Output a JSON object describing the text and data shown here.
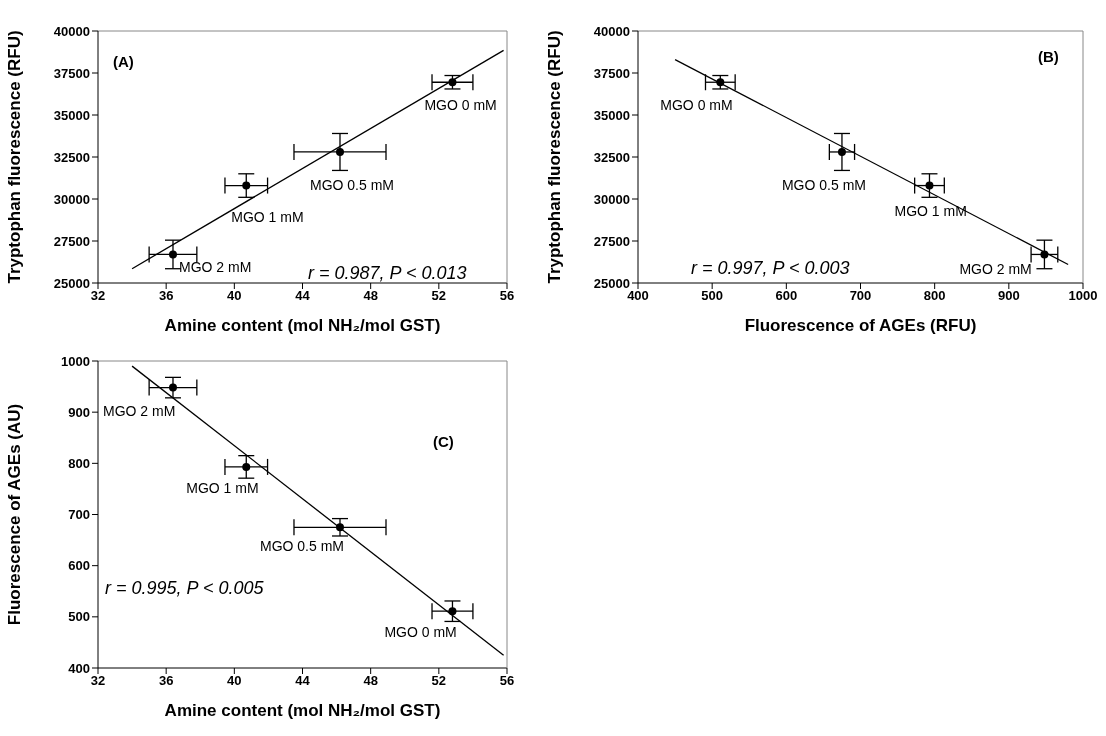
{
  "chart_data": [
    {
      "type": "scatter",
      "xlabel": "Amine content (mol NH₂/mol GST)",
      "ylabel": "Tryptophan fluorescence (RFU)",
      "xlim": [
        32,
        56
      ],
      "xticks": [
        32,
        36,
        40,
        44,
        48,
        52,
        56
      ],
      "ylim": [
        25000,
        40000
      ],
      "yticks": [
        25000,
        27500,
        30000,
        32500,
        35000,
        37500,
        40000
      ],
      "marker": "circle",
      "grid": false,
      "series": [
        {
          "color": "#000000",
          "x": [
            36.4,
            40.7,
            46.2,
            52.8
          ],
          "values": [
            26700,
            30800,
            32800,
            36950
          ],
          "errors": [
            850,
            700,
            1100,
            400
          ],
          "xerrors": [
            1.4,
            1.25,
            2.7,
            1.2
          ]
        },
        {
          "type": "line",
          "color": "#000000",
          "marker": "none",
          "x": [
            34,
            55.8
          ],
          "values": [
            25850,
            38850
          ]
        }
      ],
      "annotations": [
        "(A)",
        "r = 0.987, P < 0.013",
        {
          "text": "MGO 2 mM",
          "x": 36.4,
          "y": 26700
        },
        {
          "text": "MGO 1 mM",
          "x": 40.7,
          "y": 30800
        },
        {
          "text": "MGO 0.5 mM",
          "x": 46.2,
          "y": 32800
        },
        {
          "text": "MGO 0 mM",
          "x": 52.8,
          "y": 36950
        }
      ]
    },
    {
      "type": "scatter",
      "xlabel": "Fluorescence of AGEs (RFU)",
      "ylabel": "Tryptophan fluorescence (RFU)",
      "xlim": [
        400,
        1000
      ],
      "xticks": [
        400,
        500,
        600,
        700,
        800,
        900,
        1000
      ],
      "ylim": [
        25000,
        40000
      ],
      "yticks": [
        25000,
        27500,
        30000,
        32500,
        35000,
        37500,
        40000
      ],
      "marker": "circle",
      "grid": false,
      "series": [
        {
          "color": "#000000",
          "x": [
            511,
            675,
            793,
            948
          ],
          "values": [
            36950,
            32800,
            30800,
            26700
          ],
          "errors": [
            400,
            1100,
            700,
            850
          ],
          "xerrors": [
            20,
            17,
            20,
            18
          ]
        },
        {
          "type": "line",
          "color": "#000000",
          "marker": "none",
          "x": [
            450,
            980
          ],
          "values": [
            38300,
            26100
          ]
        }
      ],
      "annotations": [
        "(B)",
        "r = 0.997, P < 0.003",
        {
          "text": "MGO 0 mM",
          "x": 511,
          "y": 36950
        },
        {
          "text": "MGO 0.5 mM",
          "x": 675,
          "y": 32800
        },
        {
          "text": "MGO 1 mM",
          "x": 793,
          "y": 30800
        },
        {
          "text": "MGO 2 mM",
          "x": 948,
          "y": 26700
        }
      ]
    },
    {
      "type": "scatter",
      "xlabel": "Amine content (mol NH₂/mol GST)",
      "ylabel": "Fluorescence of AGEs  (AU)",
      "xlim": [
        32,
        56
      ],
      "xticks": [
        32,
        36,
        40,
        44,
        48,
        52,
        56
      ],
      "ylim": [
        400,
        1000
      ],
      "yticks": [
        400,
        500,
        600,
        700,
        800,
        900,
        1000
      ],
      "marker": "circle",
      "grid": false,
      "series": [
        {
          "color": "#000000",
          "x": [
            36.4,
            40.7,
            46.2,
            52.8
          ],
          "values": [
            948,
            793,
            675,
            511
          ],
          "errors": [
            20,
            22,
            17,
            20
          ],
          "xerrors": [
            1.4,
            1.25,
            2.7,
            1.2
          ]
        },
        {
          "type": "line",
          "color": "#000000",
          "marker": "none",
          "x": [
            34,
            55.8
          ],
          "values": [
            990,
            425
          ]
        }
      ],
      "annotations": [
        "(C)",
        "r = 0.995, P < 0.005",
        {
          "text": "MGO 2 mM",
          "x": 36.4,
          "y": 948
        },
        {
          "text": "MGO 1 mM",
          "x": 40.7,
          "y": 793
        },
        {
          "text": "MGO 0.5 mM",
          "x": 46.2,
          "y": 675
        },
        {
          "text": "MGO 0 mM",
          "x": 52.8,
          "y": 511
        }
      ]
    }
  ]
}
